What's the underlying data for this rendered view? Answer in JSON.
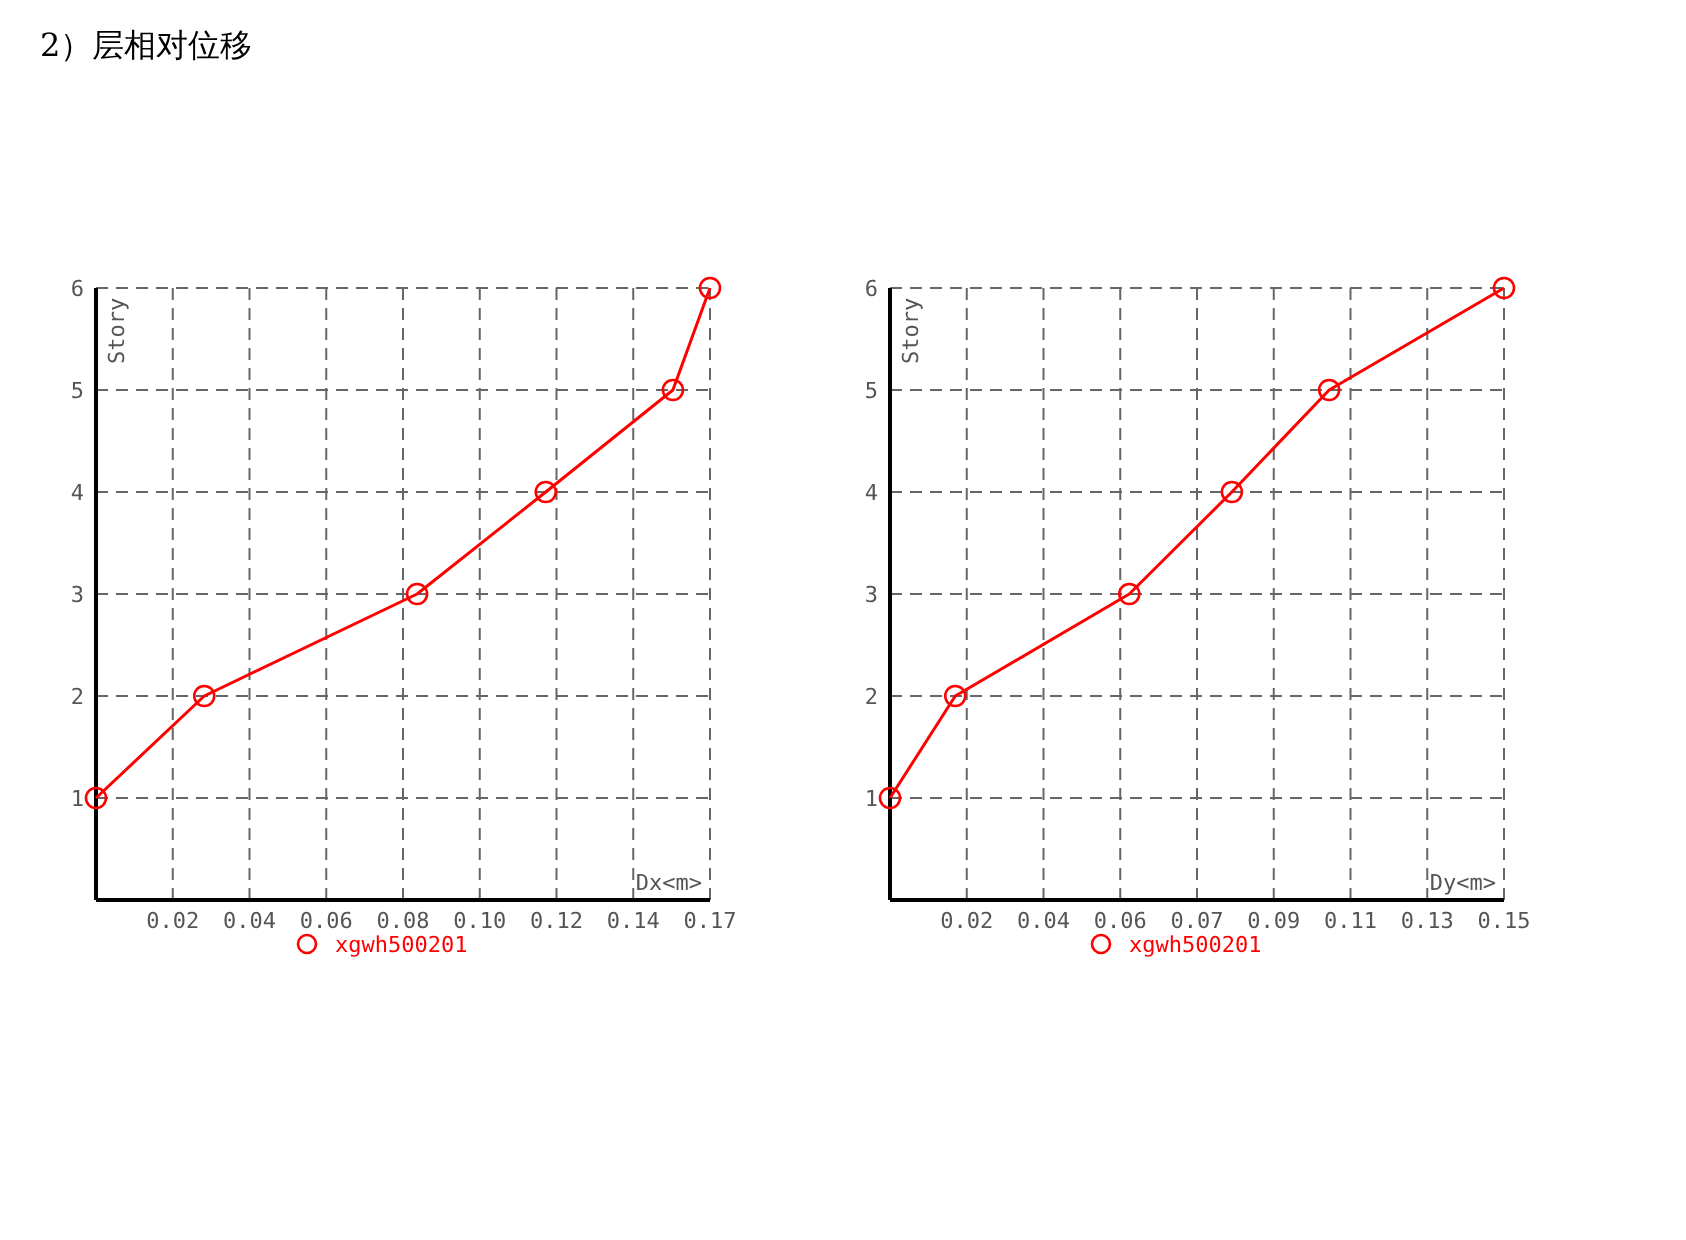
{
  "chart_data": [
    {
      "type": "line",
      "title": "2）层相对位移",
      "xlabel": "Dx<m>",
      "ylabel": "Story",
      "legend": "bottom",
      "grid": true,
      "marker": "circle",
      "line_style": "solid",
      "x": [
        0,
        0.0292,
        0.0866,
        0.1213,
        0.1556,
        0.1656
      ],
      "series": [
        {
          "name": "xgwh500201",
          "color": "#ff0000",
          "values": [
            1,
            2,
            3,
            4,
            5,
            6
          ]
        }
      ],
      "xlim": [
        0,
        0.1656
      ],
      "xticks": [
        {
          "value": 0.0207,
          "label": "0.02"
        },
        {
          "value": 0.0414,
          "label": "0.04"
        },
        {
          "value": 0.0621,
          "label": "0.06"
        },
        {
          "value": 0.0828,
          "label": "0.08"
        },
        {
          "value": 0.1035,
          "label": "0.10"
        },
        {
          "value": 0.1242,
          "label": "0.12"
        },
        {
          "value": 0.1449,
          "label": "0.14"
        },
        {
          "value": 0.1656,
          "label": "0.17"
        }
      ],
      "ylim": [
        0,
        6
      ],
      "yticks": [
        1,
        2,
        3,
        4,
        5,
        6
      ]
    },
    {
      "type": "line",
      "xlabel": "Dy<m>",
      "ylabel": "Story",
      "legend": "bottom",
      "grid": true,
      "marker": "circle",
      "line_style": "solid",
      "x": [
        0,
        0.0159,
        0.0583,
        0.0833,
        0.107,
        0.1496
      ],
      "series": [
        {
          "name": "xgwh500201",
          "color": "#ff0000",
          "values": [
            1,
            2,
            3,
            4,
            5,
            6
          ]
        }
      ],
      "xlim": [
        0,
        0.1496
      ],
      "xticks": [
        {
          "value": 0.0187,
          "label": "0.02"
        },
        {
          "value": 0.0374,
          "label": "0.04"
        },
        {
          "value": 0.0561,
          "label": "0.06"
        },
        {
          "value": 0.0748,
          "label": "0.07"
        },
        {
          "value": 0.0935,
          "label": "0.09"
        },
        {
          "value": 0.1122,
          "label": "0.11"
        },
        {
          "value": 0.1309,
          "label": "0.13"
        },
        {
          "value": 0.1496,
          "label": "0.15"
        }
      ],
      "ylim": [
        0,
        6
      ],
      "yticks": [
        1,
        2,
        3,
        4,
        5,
        6
      ]
    }
  ]
}
